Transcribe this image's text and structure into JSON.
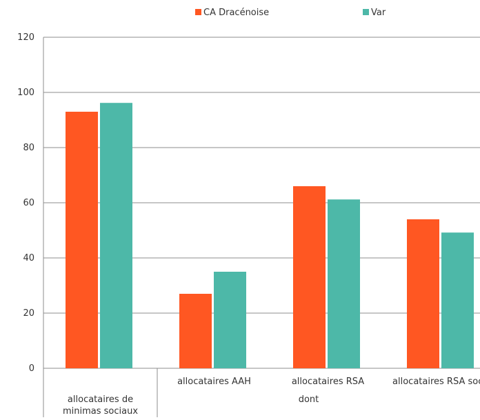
{
  "chart_data": {
    "type": "bar",
    "title": "",
    "xlabel": "",
    "ylabel": "",
    "ylim": [
      0,
      120
    ],
    "yticks": [
      0,
      20,
      40,
      60,
      80,
      100,
      120
    ],
    "grid": true,
    "legend_position": "top",
    "categories": [
      "allocataires de minimas sociaux",
      "allocataires AAH",
      "allocataires RSA",
      "allocataires RSA socle"
    ],
    "category_label_lines": [
      [
        "allocataires de",
        "minimas sociaux"
      ],
      [
        "allocataires AAH"
      ],
      [
        "allocataires RSA"
      ],
      [
        "allocataires RSA socle"
      ]
    ],
    "group_label": "dont",
    "series": [
      {
        "name": "CA Dracénoise",
        "color": "#FF5722",
        "values": [
          93,
          27,
          66,
          54
        ]
      },
      {
        "name": "Var",
        "color": "#4DB8A8",
        "values": [
          96.2,
          35,
          61.2,
          49.2
        ]
      }
    ]
  }
}
